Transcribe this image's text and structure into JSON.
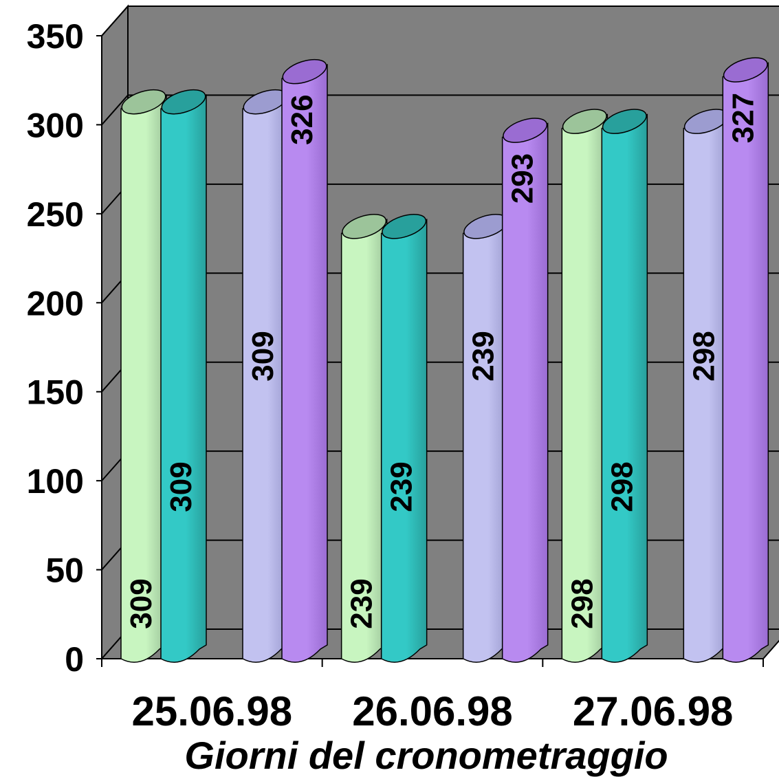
{
  "chart_data": {
    "type": "bar",
    "categories": [
      "25.06.98",
      "26.06.98",
      "27.06.98"
    ],
    "series": [
      {
        "values": [
          309,
          239,
          298
        ],
        "color": "#c8f5c0",
        "top_color": "#9cc49a"
      },
      {
        "values": [
          309,
          239,
          298
        ],
        "color": "#33c9c6",
        "top_color": "#28a09c"
      },
      {
        "values": [
          309,
          239,
          298
        ],
        "color": "#c2c2f0",
        "top_color": "#9c9cd0"
      },
      {
        "values": [
          326,
          293,
          327
        ],
        "color": "#b88af0",
        "top_color": "#9a6cd2"
      }
    ],
    "xlabel": "Giorni del cronometraggio",
    "ylabel": "",
    "ylim": [
      0,
      350
    ],
    "yticks": [
      "0",
      "50",
      "100",
      "150",
      "200",
      "250",
      "300",
      "350"
    ],
    "grid": true,
    "plot_background": "#808080"
  }
}
